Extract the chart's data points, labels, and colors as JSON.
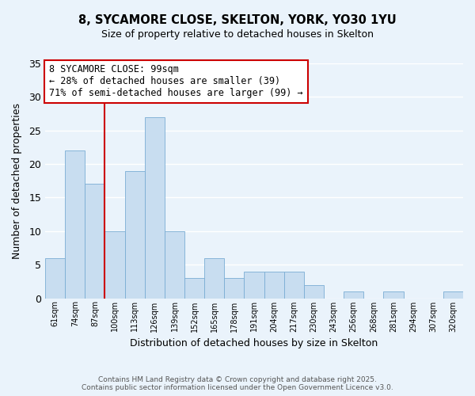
{
  "title": "8, SYCAMORE CLOSE, SKELTON, YORK, YO30 1YU",
  "subtitle": "Size of property relative to detached houses in Skelton",
  "xlabel": "Distribution of detached houses by size in Skelton",
  "ylabel": "Number of detached properties",
  "bar_color": "#c8ddf0",
  "bar_edge_color": "#7aadd4",
  "background_color": "#eaf3fb",
  "grid_color": "#ffffff",
  "categories": [
    "61sqm",
    "74sqm",
    "87sqm",
    "100sqm",
    "113sqm",
    "126sqm",
    "139sqm",
    "152sqm",
    "165sqm",
    "178sqm",
    "191sqm",
    "204sqm",
    "217sqm",
    "230sqm",
    "243sqm",
    "256sqm",
    "268sqm",
    "281sqm",
    "294sqm",
    "307sqm",
    "320sqm"
  ],
  "values": [
    6,
    22,
    17,
    10,
    19,
    27,
    10,
    3,
    6,
    3,
    4,
    4,
    4,
    2,
    0,
    1,
    0,
    1,
    0,
    0,
    1
  ],
  "ylim": [
    0,
    35
  ],
  "yticks": [
    0,
    5,
    10,
    15,
    20,
    25,
    30,
    35
  ],
  "vline_index": 3,
  "vline_color": "#cc0000",
  "annotation_title": "8 SYCAMORE CLOSE: 99sqm",
  "annotation_line1": "← 28% of detached houses are smaller (39)",
  "annotation_line2": "71% of semi-detached houses are larger (99) →",
  "annotation_box_color": "#ffffff",
  "annotation_box_edge": "#cc0000",
  "footer_line1": "Contains HM Land Registry data © Crown copyright and database right 2025.",
  "footer_line2": "Contains public sector information licensed under the Open Government Licence v3.0."
}
